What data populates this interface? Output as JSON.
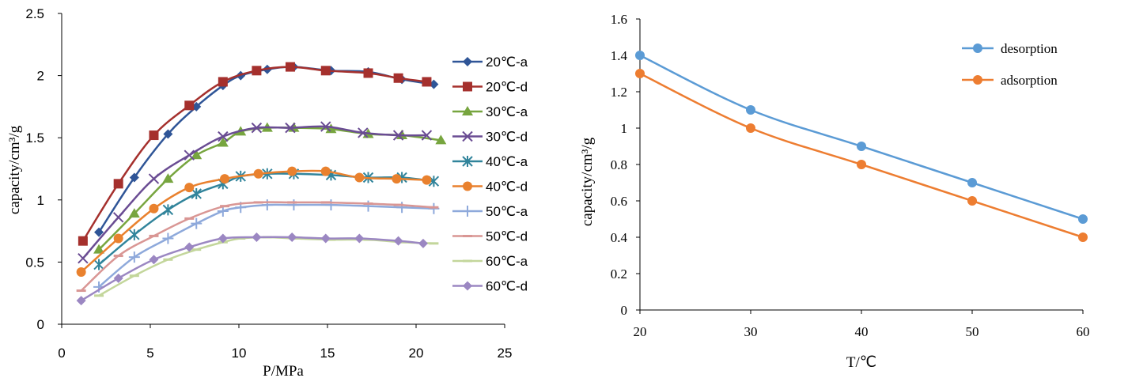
{
  "chart_data": [
    {
      "type": "line",
      "title": "",
      "xlabel": "P/MPa",
      "ylabel": "capacity/cm³/g",
      "xlim": [
        0,
        25
      ],
      "ylim": [
        0,
        2.5
      ],
      "xticks": [
        0,
        5,
        10,
        15,
        20,
        25
      ],
      "yticks": [
        0,
        0.5,
        1,
        1.5,
        2,
        2.5
      ],
      "legend_position": "right",
      "grid": false,
      "series": [
        {
          "name": "20℃-a",
          "color": "#2f5597",
          "marker": "diamond",
          "x": [
            2.1,
            4.1,
            6.0,
            7.6,
            9.1,
            10.1,
            11.6,
            13.1,
            15.2,
            17.3,
            19.2,
            21.0
          ],
          "y": [
            0.74,
            1.18,
            1.53,
            1.75,
            1.92,
            2.0,
            2.05,
            2.07,
            2.04,
            2.03,
            1.97,
            1.93
          ]
        },
        {
          "name": "20℃-d",
          "color": "#a5302d",
          "marker": "square",
          "x": [
            1.2,
            3.2,
            5.2,
            7.2,
            9.1,
            11.0,
            12.9,
            14.9,
            17.3,
            19.0,
            20.6
          ],
          "y": [
            0.67,
            1.13,
            1.52,
            1.76,
            1.95,
            2.04,
            2.07,
            2.04,
            2.02,
            1.98,
            1.95
          ]
        },
        {
          "name": "30℃-a",
          "color": "#77a53f",
          "marker": "triangle",
          "x": [
            2.1,
            4.1,
            6.0,
            7.6,
            9.1,
            10.1,
            11.6,
            13.1,
            15.2,
            17.3,
            19.2,
            21.4
          ],
          "y": [
            0.6,
            0.89,
            1.17,
            1.36,
            1.46,
            1.55,
            1.58,
            1.58,
            1.57,
            1.53,
            1.52,
            1.48
          ]
        },
        {
          "name": "30℃-d",
          "color": "#6a4c93",
          "marker": "x",
          "x": [
            1.2,
            3.2,
            5.2,
            7.2,
            9.1,
            11.0,
            12.9,
            14.9,
            17.0,
            19.0,
            20.6
          ],
          "y": [
            0.53,
            0.86,
            1.17,
            1.36,
            1.51,
            1.58,
            1.58,
            1.59,
            1.54,
            1.52,
            1.52
          ]
        },
        {
          "name": "40℃-a",
          "color": "#31849b",
          "marker": "star",
          "x": [
            2.1,
            4.1,
            6.0,
            7.6,
            9.1,
            10.1,
            11.6,
            13.1,
            15.2,
            17.3,
            19.2,
            21.0
          ],
          "y": [
            0.48,
            0.72,
            0.92,
            1.05,
            1.13,
            1.19,
            1.21,
            1.21,
            1.2,
            1.18,
            1.18,
            1.15
          ]
        },
        {
          "name": "40℃-d",
          "color": "#e9812e",
          "marker": "circle",
          "x": [
            1.1,
            3.2,
            5.2,
            7.2,
            9.2,
            11.1,
            13.0,
            14.9,
            16.8,
            18.9,
            20.6
          ],
          "y": [
            0.42,
            0.69,
            0.93,
            1.1,
            1.17,
            1.21,
            1.23,
            1.23,
            1.18,
            1.17,
            1.16
          ]
        },
        {
          "name": "50℃-a",
          "color": "#8ea9db",
          "marker": "plus",
          "x": [
            2.1,
            4.1,
            6.0,
            7.6,
            9.1,
            10.1,
            11.6,
            13.1,
            15.2,
            17.3,
            19.2,
            21.0
          ],
          "y": [
            0.3,
            0.54,
            0.69,
            0.81,
            0.91,
            0.94,
            0.96,
            0.96,
            0.96,
            0.95,
            0.94,
            0.93
          ]
        },
        {
          "name": "50℃-d",
          "color": "#d99694",
          "marker": "dash",
          "x": [
            1.1,
            3.2,
            5.2,
            7.2,
            9.2,
            11.1,
            13.0,
            14.9,
            17.3,
            19.0,
            21.0
          ],
          "y": [
            0.27,
            0.55,
            0.71,
            0.85,
            0.95,
            0.98,
            0.98,
            0.98,
            0.97,
            0.96,
            0.94
          ]
        },
        {
          "name": "60℃-a",
          "color": "#c3d69b",
          "marker": "dash",
          "x": [
            2.1,
            4.1,
            6.0,
            7.6,
            9.1,
            10.1,
            11.6,
            13.1,
            15.2,
            17.3,
            19.2,
            21.0
          ],
          "y": [
            0.23,
            0.39,
            0.52,
            0.6,
            0.66,
            0.69,
            0.7,
            0.69,
            0.68,
            0.68,
            0.66,
            0.65
          ]
        },
        {
          "name": "60℃-d",
          "color": "#9b87c2",
          "marker": "diamond",
          "x": [
            1.1,
            3.2,
            5.2,
            7.2,
            9.1,
            11.0,
            13.0,
            14.9,
            16.8,
            19.0,
            20.4
          ],
          "y": [
            0.19,
            0.37,
            0.52,
            0.62,
            0.69,
            0.7,
            0.7,
            0.69,
            0.69,
            0.67,
            0.65
          ]
        }
      ]
    },
    {
      "type": "line",
      "title": "",
      "xlabel": "T/℃",
      "ylabel": "capacity/cm³/g",
      "xlim": [
        20,
        60
      ],
      "ylim": [
        0,
        1.6
      ],
      "xticks": [
        20,
        30,
        40,
        50,
        60
      ],
      "yticks": [
        0,
        0.2,
        0.4,
        0.6,
        0.8,
        1,
        1.2,
        1.4,
        1.6
      ],
      "legend_position": "top-right",
      "grid": false,
      "series": [
        {
          "name": "desorption",
          "color": "#5b9bd5",
          "marker": "circle",
          "x": [
            20,
            30,
            40,
            50,
            60
          ],
          "y": [
            1.4,
            1.1,
            0.9,
            0.7,
            0.5
          ]
        },
        {
          "name": "adsorption",
          "color": "#ed7d31",
          "marker": "circle",
          "x": [
            20,
            30,
            40,
            50,
            60
          ],
          "y": [
            1.3,
            1.0,
            0.8,
            0.6,
            0.4
          ]
        }
      ]
    }
  ]
}
